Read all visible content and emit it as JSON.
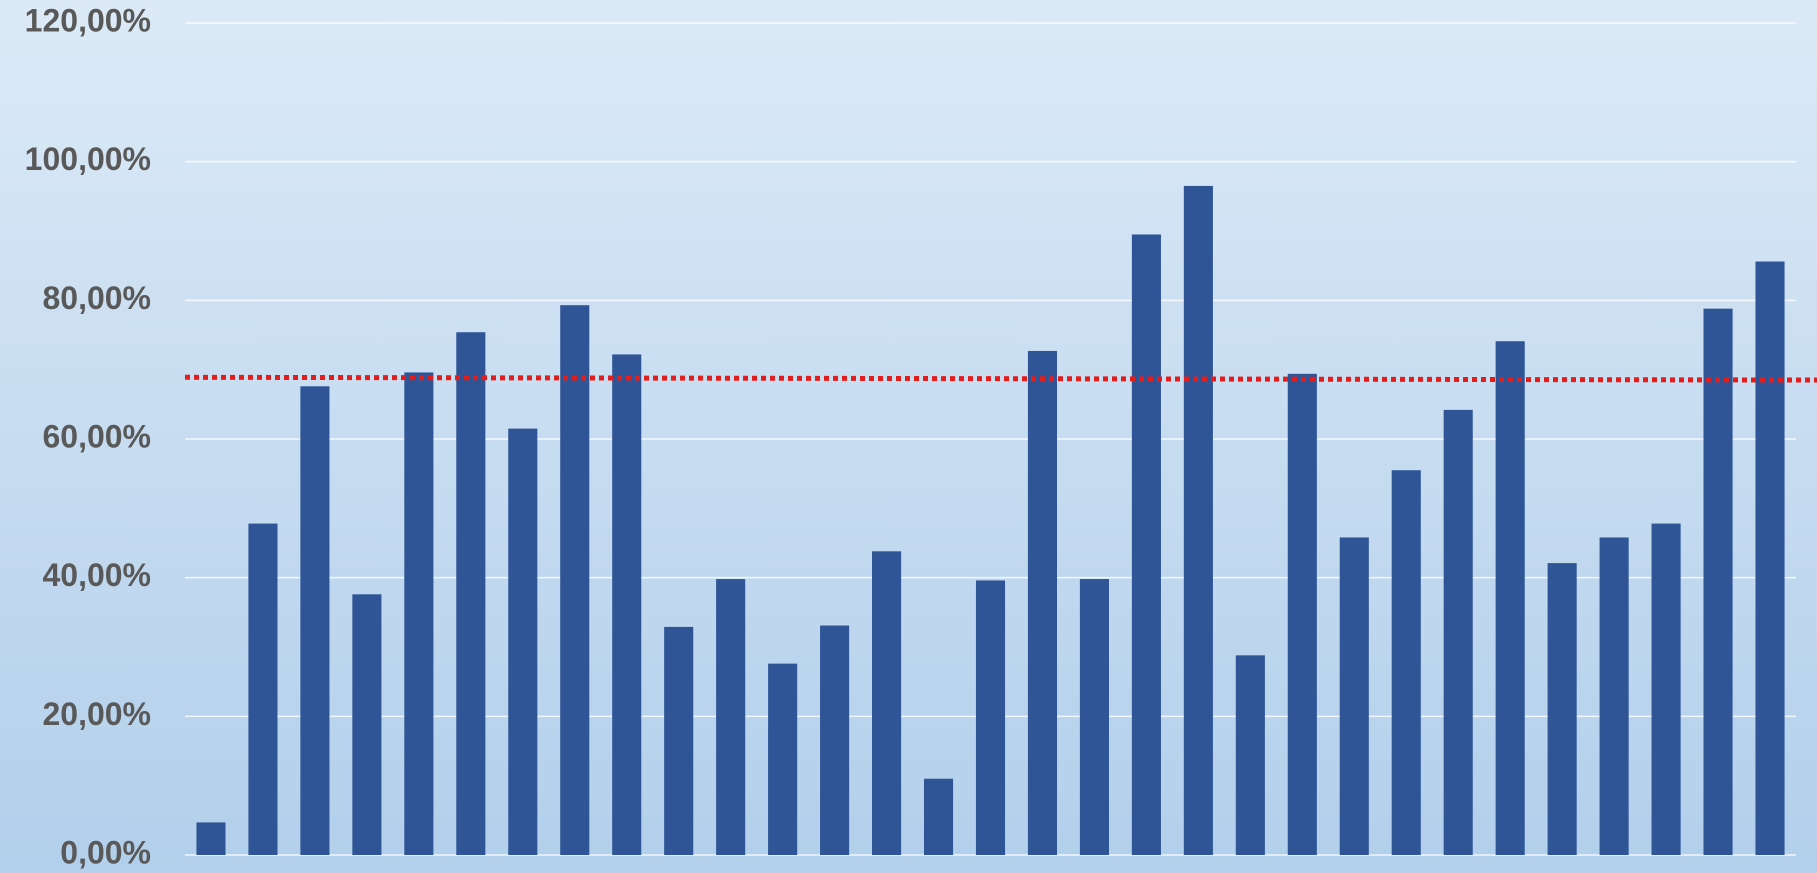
{
  "chart_data": {
    "type": "bar",
    "values": [
      4.7,
      47.8,
      67.6,
      37.6,
      69.6,
      75.4,
      61.5,
      79.3,
      72.2,
      32.9,
      39.8,
      27.6,
      33.1,
      43.8,
      11.0,
      39.6,
      72.7,
      39.8,
      89.5,
      96.5,
      28.8,
      69.4,
      45.8,
      55.5,
      64.2,
      74.1,
      42.1,
      45.8,
      47.8,
      78.8,
      85.6
    ],
    "color": "#2f5597",
    "ylim": [
      0,
      120
    ],
    "yticks": [
      {
        "value": 0,
        "label": "0,00%"
      },
      {
        "value": 20,
        "label": "20,00%"
      },
      {
        "value": 40,
        "label": "40,00%"
      },
      {
        "value": 60,
        "label": "60,00%"
      },
      {
        "value": 80,
        "label": "80,00%"
      },
      {
        "value": 100,
        "label": "100,00%"
      },
      {
        "value": 120,
        "label": "120,00%"
      }
    ],
    "grid": true,
    "trendline": {
      "color": "#e31c1c",
      "start": 68.9,
      "end": 68.5
    }
  }
}
